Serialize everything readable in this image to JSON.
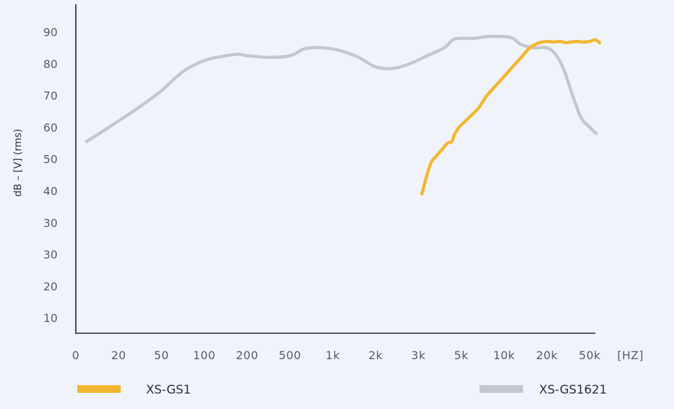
{
  "chart_data": {
    "type": "line",
    "ylabel": "dB – [V] (rms)",
    "xunit": "[HZ]",
    "x_tick_labels": [
      "0",
      "20",
      "50",
      "100",
      "200",
      "500",
      "1k",
      "2k",
      "3k",
      "5k",
      "10k",
      "20k",
      "50k"
    ],
    "y_tick_labels": [
      "90",
      "80",
      "70",
      "60",
      "50",
      "40",
      "30",
      "30",
      "20",
      "10"
    ],
    "series": [
      {
        "name": "XS-GS1",
        "color": "#f2b630",
        "x": [
          "3k",
          "5k",
          "10k",
          "20k",
          "50k"
        ],
        "points": [
          [
            8.08,
            39
          ],
          [
            8.12,
            41
          ],
          [
            8.2,
            45
          ],
          [
            8.3,
            49
          ],
          [
            8.42,
            51
          ],
          [
            8.55,
            53
          ],
          [
            8.68,
            55
          ],
          [
            8.78,
            55.5
          ],
          [
            8.85,
            58
          ],
          [
            8.95,
            60
          ],
          [
            9.1,
            62
          ],
          [
            9.25,
            64
          ],
          [
            9.4,
            66
          ],
          [
            9.6,
            70
          ],
          [
            9.8,
            73
          ],
          [
            10.0,
            76
          ],
          [
            10.2,
            79
          ],
          [
            10.4,
            82
          ],
          [
            10.6,
            85
          ],
          [
            10.8,
            86.5
          ],
          [
            11.0,
            87
          ],
          [
            11.15,
            86.8
          ],
          [
            11.3,
            87
          ],
          [
            11.45,
            86.6
          ],
          [
            11.55,
            86.8
          ],
          [
            11.7,
            87
          ],
          [
            11.85,
            86.8
          ],
          [
            12.0,
            87
          ],
          [
            12.1,
            87.5
          ],
          [
            12.18,
            87.2
          ],
          [
            12.23,
            86.5
          ]
        ]
      },
      {
        "name": "XS-GS1621",
        "color": "#c4c6d0",
        "x": [
          "0",
          "20",
          "50",
          "100",
          "200",
          "500",
          "1k",
          "2k",
          "3k",
          "5k",
          "10k",
          "20k",
          "50k"
        ],
        "points": [
          [
            0.25,
            55.5
          ],
          [
            0.6,
            58.5
          ],
          [
            1.0,
            62
          ],
          [
            1.5,
            66.5
          ],
          [
            2.0,
            71.5
          ],
          [
            2.5,
            77.5
          ],
          [
            3.0,
            81
          ],
          [
            3.5,
            82.5
          ],
          [
            3.8,
            83
          ],
          [
            4.0,
            82.5
          ],
          [
            4.5,
            82
          ],
          [
            5.0,
            82.5
          ],
          [
            5.3,
            84.5
          ],
          [
            5.5,
            85
          ],
          [
            5.8,
            85
          ],
          [
            6.2,
            84
          ],
          [
            6.6,
            82
          ],
          [
            7.0,
            79
          ],
          [
            7.4,
            78.5
          ],
          [
            7.8,
            80
          ],
          [
            8.2,
            82.5
          ],
          [
            8.6,
            85
          ],
          [
            8.8,
            87.5
          ],
          [
            9.0,
            88
          ],
          [
            9.3,
            88
          ],
          [
            9.6,
            88.5
          ],
          [
            10.0,
            88.5
          ],
          [
            10.2,
            88
          ],
          [
            10.4,
            86
          ],
          [
            10.7,
            85
          ],
          [
            11.0,
            85
          ],
          [
            11.2,
            83
          ],
          [
            11.4,
            78
          ],
          [
            11.6,
            70
          ],
          [
            11.8,
            63
          ],
          [
            12.0,
            60
          ],
          [
            12.15,
            58
          ]
        ]
      }
    ],
    "legend_position": "bottom",
    "grid": false
  }
}
